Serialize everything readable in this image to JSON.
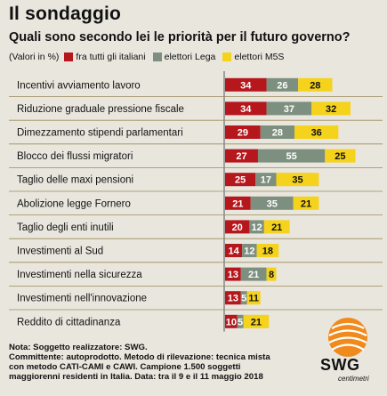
{
  "header": {
    "title": "Il sondaggio",
    "subtitle": "Quali sono secondo lei le priorità per il futuro governo?"
  },
  "legend": {
    "unit_note": "(Valori in %)",
    "items": [
      {
        "label": "fra tutti gli italiani",
        "color": "#b5171c"
      },
      {
        "label": "elettori Lega",
        "color": "#7d8f7f"
      },
      {
        "label": "elettori M5S",
        "color": "#f5d21b"
      }
    ]
  },
  "chart_data": {
    "type": "bar",
    "orientation": "horizontal",
    "stacked": true,
    "title": "Quali sono secondo lei le priorità per il futuro governo?",
    "unit": "%",
    "categories": [
      "Incentivi avviamento lavoro",
      "Riduzione graduale pressione fiscale",
      "Dimezzamento stipendi parlamentari",
      "Blocco dei flussi migratori",
      "Taglio delle maxi pensioni",
      "Abolizione legge Fornero",
      "Taglio degli enti inutili",
      "Investimenti al Sud",
      "Investimenti nella sicurezza",
      "Investimenti nell'innovazione",
      "Reddito di cittadinanza"
    ],
    "series": [
      {
        "name": "fra tutti gli italiani",
        "color": "#b5171c",
        "values": [
          34,
          34,
          29,
          27,
          25,
          21,
          20,
          14,
          13,
          13,
          10
        ]
      },
      {
        "name": "elettori Lega",
        "color": "#7d8f7f",
        "values": [
          26,
          37,
          28,
          55,
          17,
          35,
          12,
          12,
          21,
          5,
          5
        ]
      },
      {
        "name": "elettori M5S",
        "color": "#f5d21b",
        "values": [
          28,
          32,
          36,
          25,
          35,
          21,
          21,
          18,
          8,
          11,
          21
        ]
      }
    ],
    "xlim": [
      0,
      130
    ],
    "legend_position": "top"
  },
  "footer": {
    "note_lines": [
      "Nota: Soggetto realizzatore: SWG.",
      "Committente: autoprodotto. Metodo di rilevazione: tecnica mista",
      "con metodo CATI-CAMI e CAWI. Campione 1.500 soggetti",
      "maggiorenni residenti in Italia. Data: tra il 9 e il 11 maggio 2018"
    ],
    "logo_name": "SWG",
    "logo_sub": "centimetri"
  }
}
